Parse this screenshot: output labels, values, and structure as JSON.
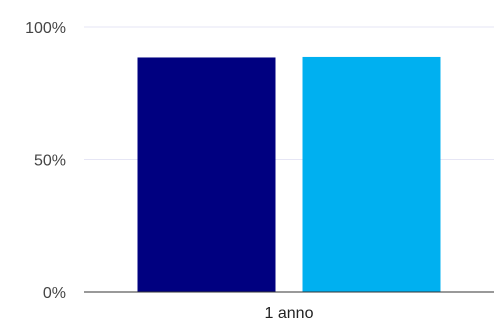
{
  "chart_data": {
    "type": "bar",
    "categories": [
      "1 anno"
    ],
    "series": [
      {
        "color": "#000080",
        "values": [
          88.5
        ]
      },
      {
        "color": "#00B0F0",
        "values": [
          88.7
        ]
      }
    ],
    "ylim": [
      0,
      100
    ],
    "y_ticks": [
      {
        "value": 0,
        "label": "0%"
      },
      {
        "value": 50,
        "label": "50%"
      },
      {
        "value": 100,
        "label": "100%"
      }
    ],
    "grid": true,
    "gridline_color": "#E6E6F5",
    "axis_color": "#333333"
  }
}
